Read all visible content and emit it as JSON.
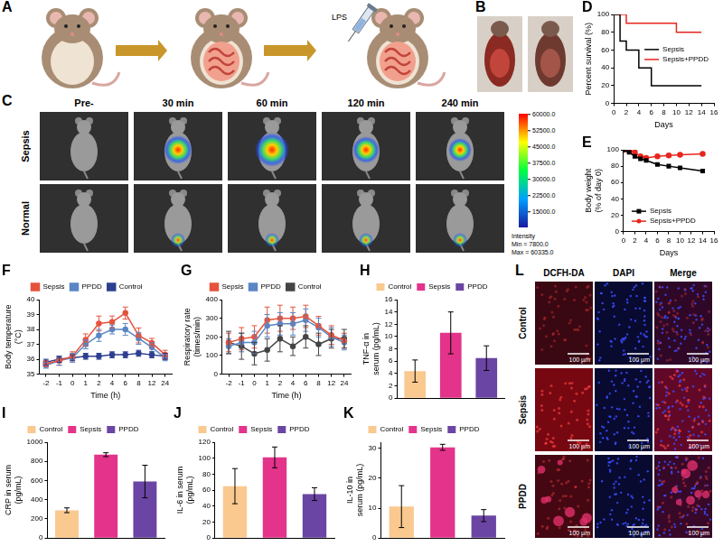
{
  "figures": [
    {
      "panel": "A",
      "labels": [
        "LPS"
      ]
    },
    {
      "panel": "B"
    },
    {
      "panel": "C",
      "rows": [
        "Sepsis",
        "Normal"
      ],
      "columns": [
        "Pre-",
        "30 min",
        "60 min",
        "120 min",
        "240 min"
      ],
      "colorbar": {
        "title": "Intensity",
        "min_label": "Min = 7800.0",
        "max_label": "Max = 60335.0",
        "range": [
          7800,
          60335
        ],
        "ticks": [
          {
            "value": 60000,
            "label": "60000.0"
          },
          {
            "value": 52500,
            "label": "52500.0"
          },
          {
            "value": 45000,
            "label": "45000.0"
          },
          {
            "value": 37500,
            "label": "37500.0"
          },
          {
            "value": 30000,
            "label": "30000.0"
          },
          {
            "value": 22500,
            "label": "22500.0"
          },
          {
            "value": 15000,
            "label": "15000.0"
          }
        ]
      }
    },
    {
      "panel": "L",
      "rows": [
        "Control",
        "Sepsis",
        "PPDD"
      ],
      "columns": [
        "DCFH-DA",
        "DAPI",
        "Merge"
      ],
      "scale_bar": "100 µm"
    }
  ],
  "chart_data": [
    {
      "panel": "D",
      "type": "line",
      "x_label": "Days",
      "y_label": "Percent survival (%)",
      "xlim": [
        0,
        16
      ],
      "xticks": [
        0,
        2,
        4,
        6,
        8,
        10,
        12,
        14,
        16
      ],
      "ylim": [
        0,
        100
      ],
      "yticks": [
        0,
        20,
        40,
        60,
        80,
        100
      ],
      "grid": false,
      "legend": "center right",
      "series": [
        {
          "name": "Sepsis",
          "color": "#000000",
          "line_style": "step",
          "x": [
            0,
            1,
            2,
            4,
            6,
            14
          ],
          "values": [
            100,
            70,
            60,
            40,
            20,
            20
          ]
        },
        {
          "name": "Sepsis+PPDD",
          "color": "#e8251f",
          "line_style": "step",
          "x": [
            0,
            2,
            10,
            14
          ],
          "values": [
            100,
            90,
            80,
            80
          ]
        }
      ]
    },
    {
      "panel": "E",
      "type": "line",
      "x_label": "Days",
      "y_label": "Body weight (% of day 0)",
      "xlim": [
        0,
        16
      ],
      "xticks": [
        0,
        2,
        4,
        6,
        8,
        10,
        12,
        14,
        16
      ],
      "ylim": [
        0,
        100
      ],
      "yticks": [
        0,
        20,
        40,
        60,
        80,
        100
      ],
      "grid": false,
      "legend": "lower left",
      "x": [
        0,
        1,
        2,
        3,
        4,
        6,
        8,
        10,
        14
      ],
      "series": [
        {
          "name": "Sepsis",
          "color": "#000000",
          "marker": "square",
          "line_style": "solid",
          "values": [
            100,
            97,
            92,
            89,
            87,
            82,
            80,
            78,
            74
          ]
        },
        {
          "name": "Sepsis+PPDD",
          "color": "#e8251f",
          "marker": "circle",
          "line_style": "solid",
          "values": [
            100,
            99,
            97,
            92,
            90,
            92,
            93,
            94,
            95
          ]
        }
      ]
    },
    {
      "panel": "F",
      "type": "line",
      "x_label": "Time (h)",
      "y_label": "Body temperature (°C)",
      "categories": [
        "-2",
        "-1",
        "0",
        "1",
        "2",
        "4",
        "6",
        "8",
        "12",
        "24"
      ],
      "ylim": [
        35,
        40
      ],
      "yticks": [
        35,
        36,
        37,
        38,
        39,
        40
      ],
      "grid": false,
      "legend": "top",
      "series": [
        {
          "name": "Sepsis",
          "color": "#e5533d",
          "marker": "circle",
          "line_style": "solid",
          "values": [
            35.7,
            35.9,
            36.2,
            37.3,
            38.4,
            38.5,
            39.1,
            37.6,
            37.1,
            36.3
          ],
          "errors": [
            0.2,
            0.3,
            0.3,
            0.4,
            0.5,
            0.4,
            0.4,
            0.5,
            0.3,
            0.3
          ]
        },
        {
          "name": "PPDD",
          "color": "#5a86c5",
          "marker": "circle",
          "line_style": "solid",
          "values": [
            35.6,
            35.9,
            36.1,
            37.0,
            37.6,
            38.0,
            38.0,
            37.4,
            36.8,
            36.1
          ],
          "errors": [
            0.2,
            0.3,
            0.3,
            0.3,
            0.4,
            0.3,
            0.4,
            0.4,
            0.3,
            0.2
          ]
        },
        {
          "name": "Control",
          "color": "#2d3f8f",
          "marker": "circle",
          "line_style": "solid",
          "values": [
            35.8,
            36.0,
            36.1,
            36.2,
            36.2,
            36.3,
            36.3,
            36.4,
            36.3,
            36.2
          ],
          "errors": [
            0.2,
            0.2,
            0.2,
            0.2,
            0.2,
            0.2,
            0.2,
            0.2,
            0.2,
            0.2
          ]
        }
      ]
    },
    {
      "panel": "G",
      "type": "line",
      "x_label": "Time (h)",
      "y_label": "Respiratory rate (times/min)",
      "categories": [
        "-2",
        "-1",
        "0",
        "1",
        "2",
        "4",
        "6",
        "8",
        "12",
        "24"
      ],
      "ylim": [
        0,
        400
      ],
      "yticks": [
        0,
        100,
        200,
        300,
        400
      ],
      "grid": false,
      "legend": "top",
      "series": [
        {
          "name": "Sepsis",
          "color": "#e5533d",
          "marker": "circle",
          "line_style": "solid",
          "values": [
            170,
            190,
            200,
            290,
            300,
            300,
            310,
            260,
            210,
            180
          ],
          "errors": [
            50,
            60,
            60,
            70,
            70,
            60,
            60,
            50,
            50,
            40
          ]
        },
        {
          "name": "PPDD",
          "color": "#5a86c5",
          "marker": "circle",
          "line_style": "solid",
          "values": [
            150,
            170,
            170,
            260,
            270,
            270,
            290,
            250,
            200,
            170
          ],
          "errors": [
            40,
            50,
            60,
            60,
            60,
            60,
            60,
            50,
            50,
            40
          ]
        },
        {
          "name": "Control",
          "color": "#444444",
          "marker": "circle",
          "line_style": "solid",
          "values": [
            170,
            150,
            110,
            130,
            190,
            150,
            200,
            160,
            190,
            190
          ],
          "errors": [
            60,
            70,
            60,
            60,
            70,
            50,
            60,
            60,
            50,
            50
          ]
        }
      ]
    },
    {
      "panel": "H",
      "type": "bar",
      "y_label": "TNF-α in serum (pg/mL)",
      "categories": [
        "Control",
        "Sepsis",
        "PPDD"
      ],
      "colors": [
        "#f9c98f",
        "#e3338a",
        "#6b45a3"
      ],
      "values": [
        4.4,
        10.6,
        6.5
      ],
      "errors": [
        1.8,
        3.4,
        2.0
      ],
      "ylim": [
        0,
        16
      ],
      "yticks": [
        0,
        2,
        4,
        6,
        8,
        10,
        12,
        14,
        16
      ],
      "grid": false,
      "legend": "top",
      "tick_labels": "y"
    },
    {
      "panel": "I",
      "type": "bar",
      "y_label": "CRP in serum (pg/mL)",
      "categories": [
        "Control",
        "Sepsis",
        "PPDD"
      ],
      "colors": [
        "#f9c98f",
        "#e3338a",
        "#6b45a3"
      ],
      "values": [
        290,
        870,
        590
      ],
      "errors": [
        25,
        20,
        170
      ],
      "ylim": [
        0,
        1000
      ],
      "yticks": [
        0,
        200,
        400,
        600,
        800,
        1000
      ],
      "grid": false,
      "legend": "top",
      "tick_labels": "y"
    },
    {
      "panel": "J",
      "type": "bar",
      "y_label": "IL-6 in serum (pg/mL)",
      "categories": [
        "Control",
        "Sepsis",
        "PPDD"
      ],
      "colors": [
        "#f9c98f",
        "#e3338a",
        "#6b45a3"
      ],
      "values": [
        65,
        101,
        55
      ],
      "errors": [
        22,
        13,
        8
      ],
      "ylim": [
        0,
        120
      ],
      "yticks": [
        0,
        20,
        40,
        60,
        80,
        100,
        120
      ],
      "grid": false,
      "legend": "top",
      "tick_labels": "y"
    },
    {
      "panel": "K",
      "type": "bar",
      "y_label": "IL-10 in serum (pg/mL)",
      "categories": [
        "Control",
        "Sepsis",
        "PPDD"
      ],
      "colors": [
        "#f9c98f",
        "#e3338a",
        "#6b45a3"
      ],
      "values": [
        10.5,
        30.3,
        7.5
      ],
      "errors": [
        7,
        1,
        2
      ],
      "ylim": [
        0,
        32
      ],
      "yticks": [
        0,
        10,
        20,
        30
      ],
      "grid": false,
      "legend": "top",
      "tick_labels": "y"
    }
  ]
}
